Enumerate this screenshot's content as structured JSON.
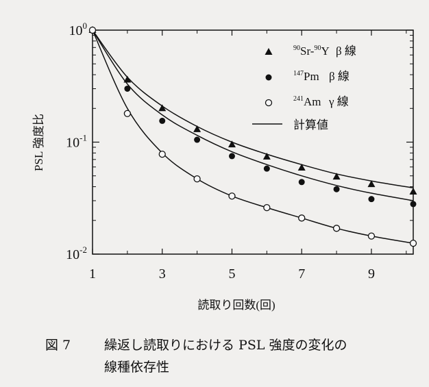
{
  "chart_data": {
    "type": "line",
    "ylabel": "PSL 強度比",
    "xlabel": "読取り回数(回)",
    "y_scale": "log",
    "ylim": [
      0.01,
      1
    ],
    "xlim": [
      1,
      10.2
    ],
    "x_ticks": [
      1,
      3,
      5,
      7,
      9
    ],
    "y_ticks": [
      {
        "value": 1,
        "base": "10",
        "exp": "0"
      },
      {
        "value": 0.1,
        "base": "10",
        "exp": "-1"
      },
      {
        "value": 0.01,
        "base": "10",
        "exp": "-2"
      }
    ],
    "legend_position": "top-right",
    "series": [
      {
        "name_sup": "90",
        "name_a": "Sr-",
        "name_sup2": "90",
        "name_b": "Y",
        "name_suffix": "β 線",
        "marker": "triangle",
        "x": [
          1,
          2,
          3,
          4,
          5,
          6,
          7,
          8,
          9,
          10.2
        ],
        "y": [
          1.0,
          0.36,
          0.2,
          0.13,
          0.095,
          0.074,
          0.059,
          0.049,
          0.042,
          0.036
        ],
        "fit": [
          1.0,
          0.38,
          0.21,
          0.138,
          0.1,
          0.078,
          0.063,
          0.052,
          0.045,
          0.039
        ]
      },
      {
        "name_sup": "147",
        "name_a": "Pm",
        "name_sup2": "",
        "name_b": "",
        "name_suffix": "β 線",
        "marker": "filled-circle",
        "x": [
          1,
          2,
          3,
          4,
          5,
          6,
          7,
          8,
          9,
          10.2
        ],
        "y": [
          1.0,
          0.3,
          0.155,
          0.105,
          0.075,
          0.058,
          0.044,
          0.038,
          0.031,
          0.028
        ],
        "fit": [
          1.0,
          0.33,
          0.175,
          0.115,
          0.082,
          0.063,
          0.05,
          0.041,
          0.035,
          0.03
        ]
      },
      {
        "name_sup": "241",
        "name_a": "Am",
        "name_sup2": "",
        "name_b": "",
        "name_suffix": "γ 線",
        "marker": "open-circle",
        "x": [
          1,
          2,
          3,
          4,
          5,
          6,
          7,
          8,
          9,
          10.2
        ],
        "y": [
          1.0,
          0.18,
          0.078,
          0.047,
          0.033,
          0.026,
          0.021,
          0.017,
          0.0145,
          0.0125
        ],
        "fit": [
          1.0,
          0.2,
          0.08,
          0.047,
          0.033,
          0.026,
          0.021,
          0.017,
          0.0145,
          0.0125
        ]
      }
    ],
    "line_legend": "計算値"
  },
  "caption": {
    "figure_number": "図 7",
    "line1": "繰返し読取りにおける PSL 強度の変化の",
    "line2": "線種依存性"
  }
}
